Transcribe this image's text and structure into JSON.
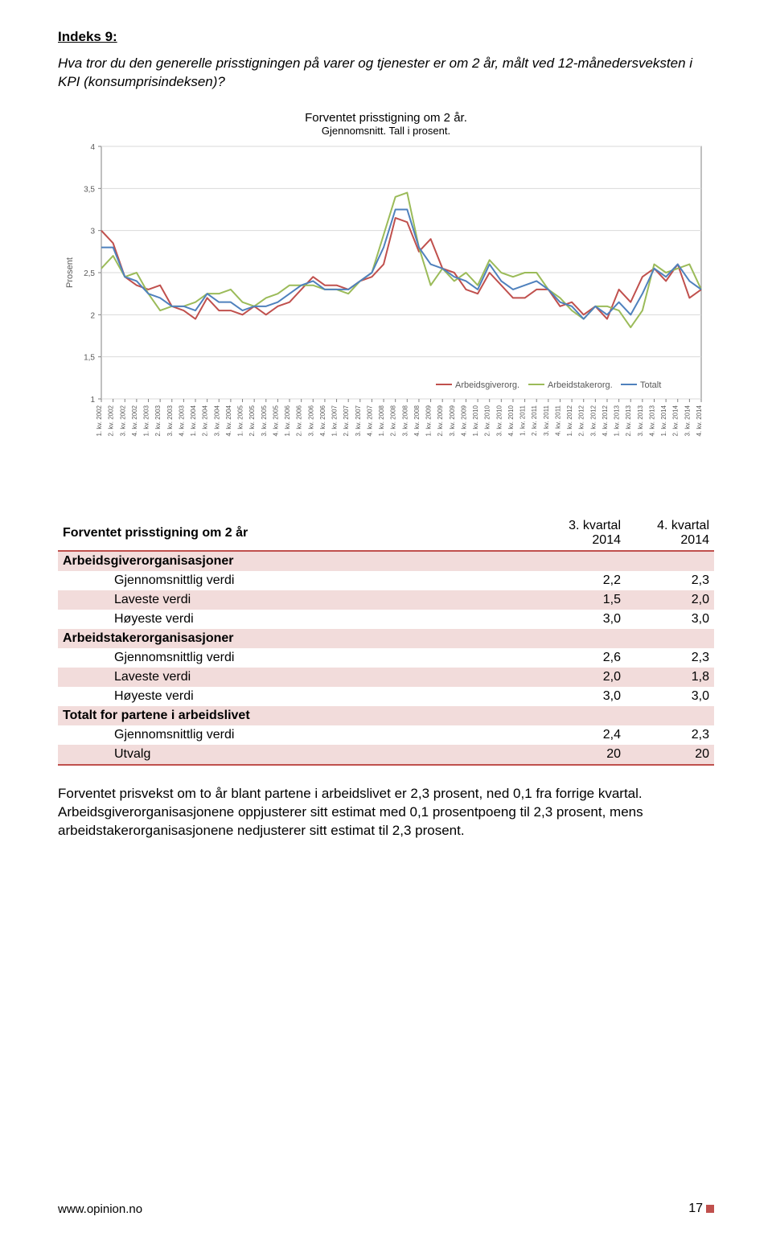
{
  "heading": "Indeks 9:",
  "question": "Hva tror du den generelle prisstigningen på varer og tjenester er om 2 år, målt ved 12-månedersveksten i KPI (konsumprisindeksen)?",
  "chart": {
    "type": "line",
    "title": "Forventet prisstigning om 2 år.",
    "subtitle": "Gjennomsnitt. Tall i prosent.",
    "yaxis_label": "Prosent",
    "ylim": [
      1,
      4
    ],
    "ytick_step": 0.5,
    "background_color": "#ffffff",
    "grid_color": "#d9d9d9",
    "axis_color": "#808080",
    "plot_border_color": "#808080",
    "tick_font_size": 10,
    "x_tick_font_size": 8,
    "line_width": 2,
    "categories": [
      "1. kv. 2002",
      "2. kv. 2002",
      "3. kv. 2002",
      "4. kv. 2002",
      "1. kv. 2003",
      "2. kv. 2003",
      "3. kv. 2003",
      "4. kv. 2003",
      "1. kv. 2004",
      "2. kv. 2004",
      "3. kv. 2004",
      "4. kv. 2004",
      "1. kv. 2005",
      "2. kv. 2005",
      "3. kv. 2005",
      "4. kv. 2005",
      "1. kv. 2006",
      "2. kv. 2006",
      "3. kv. 2006",
      "4. kv. 2006",
      "1. kv. 2007",
      "2. kv. 2007",
      "3. kv. 2007",
      "4. kv. 2007",
      "1. kv. 2008",
      "2. kv. 2008",
      "3. kv. 2008",
      "4. kv. 2008",
      "1. kv. 2009",
      "2. kv. 2009",
      "3. kv. 2009",
      "4. kv. 2009",
      "1. kv. 2010",
      "2. kv. 2010",
      "3. kv. 2010",
      "4. kv. 2010",
      "1. kv. 2011",
      "2. kv. 2011",
      "3. kv. 2011",
      "4. kv. 2011",
      "1. kv. 2012",
      "2. kv. 2012",
      "3. kv. 2012",
      "4. kv. 2012",
      "1. kv. 2013",
      "2. kv. 2013",
      "3. kv. 2013",
      "4. kv. 2013",
      "1. kv. 2014",
      "2. kv. 2014",
      "3. kv. 2014",
      "4. kv. 2014"
    ],
    "series": [
      {
        "name": "Arbeidsgiverorg.",
        "color": "#c0504d",
        "values": [
          3.0,
          2.85,
          2.45,
          2.35,
          2.3,
          2.35,
          2.1,
          2.05,
          1.95,
          2.2,
          2.05,
          2.05,
          2.0,
          2.1,
          2.0,
          2.1,
          2.15,
          2.3,
          2.45,
          2.35,
          2.35,
          2.3,
          2.4,
          2.45,
          2.6,
          3.15,
          3.1,
          2.75,
          2.9,
          2.55,
          2.5,
          2.3,
          2.25,
          2.5,
          2.35,
          2.2,
          2.2,
          2.3,
          2.3,
          2.1,
          2.15,
          2.0,
          2.1,
          1.95,
          2.3,
          2.15,
          2.45,
          2.55,
          2.4,
          2.6,
          2.2,
          2.3
        ]
      },
      {
        "name": "Arbeidstakerorg.",
        "color": "#9bbb59",
        "values": [
          2.55,
          2.7,
          2.45,
          2.5,
          2.25,
          2.05,
          2.1,
          2.1,
          2.15,
          2.25,
          2.25,
          2.3,
          2.15,
          2.1,
          2.2,
          2.25,
          2.35,
          2.35,
          2.35,
          2.3,
          2.3,
          2.25,
          2.4,
          2.5,
          2.95,
          3.4,
          3.45,
          2.8,
          2.35,
          2.55,
          2.4,
          2.5,
          2.35,
          2.65,
          2.5,
          2.45,
          2.5,
          2.5,
          2.3,
          2.2,
          2.05,
          1.95,
          2.1,
          2.1,
          2.05,
          1.85,
          2.05,
          2.6,
          2.5,
          2.55,
          2.6,
          2.3
        ]
      },
      {
        "name": "Totalt",
        "color": "#4f81bd",
        "values": [
          2.8,
          2.8,
          2.45,
          2.4,
          2.25,
          2.2,
          2.1,
          2.1,
          2.05,
          2.25,
          2.15,
          2.15,
          2.05,
          2.1,
          2.1,
          2.15,
          2.25,
          2.35,
          2.4,
          2.3,
          2.3,
          2.3,
          2.4,
          2.5,
          2.8,
          3.25,
          3.25,
          2.8,
          2.6,
          2.55,
          2.45,
          2.4,
          2.3,
          2.6,
          2.4,
          2.3,
          2.35,
          2.4,
          2.3,
          2.15,
          2.1,
          1.95,
          2.1,
          2.0,
          2.15,
          2.0,
          2.25,
          2.55,
          2.45,
          2.6,
          2.4,
          2.3
        ]
      }
    ],
    "legend_position": "bottom-right"
  },
  "table": {
    "title": "Forventet prisstigning om 2 år",
    "col_headers": [
      "3. kvartal 2014",
      "4. kvartal 2014"
    ],
    "groups": [
      {
        "label": "Arbeidsgiverorganisasjoner",
        "rows": [
          {
            "label": "Gjennomsnittlig verdi",
            "v1": "2,2",
            "v2": "2,3"
          },
          {
            "label": "Laveste verdi",
            "v1": "1,5",
            "v2": "2,0",
            "shade": true
          },
          {
            "label": "Høyeste verdi",
            "v1": "3,0",
            "v2": "3,0"
          }
        ]
      },
      {
        "label": "Arbeidstakerorganisasjoner",
        "rows": [
          {
            "label": "Gjennomsnittlig verdi",
            "v1": "2,6",
            "v2": "2,3"
          },
          {
            "label": "Laveste verdi",
            "v1": "2,0",
            "v2": "1,8",
            "shade": true
          },
          {
            "label": "Høyeste verdi",
            "v1": "3,0",
            "v2": "3,0"
          }
        ]
      },
      {
        "label": "Totalt for partene i arbeidslivet",
        "rows": [
          {
            "label": "Gjennomsnittlig verdi",
            "v1": "2,4",
            "v2": "2,3"
          },
          {
            "label": "Utvalg",
            "v1": "20",
            "v2": "20",
            "shade": true
          }
        ]
      }
    ]
  },
  "paragraph": "Forventet prisvekst om to år blant partene i arbeidslivet er 2,3 prosent, ned 0,1 fra forrige kvartal. Arbeidsgiverorganisasjonene oppjusterer sitt estimat med 0,1 prosentpoeng til 2,3 prosent, mens arbeidstakerorganisasjonene nedjusterer sitt estimat til 2,3 prosent.",
  "footer_url": "www.opinion.no",
  "page_number": "17"
}
